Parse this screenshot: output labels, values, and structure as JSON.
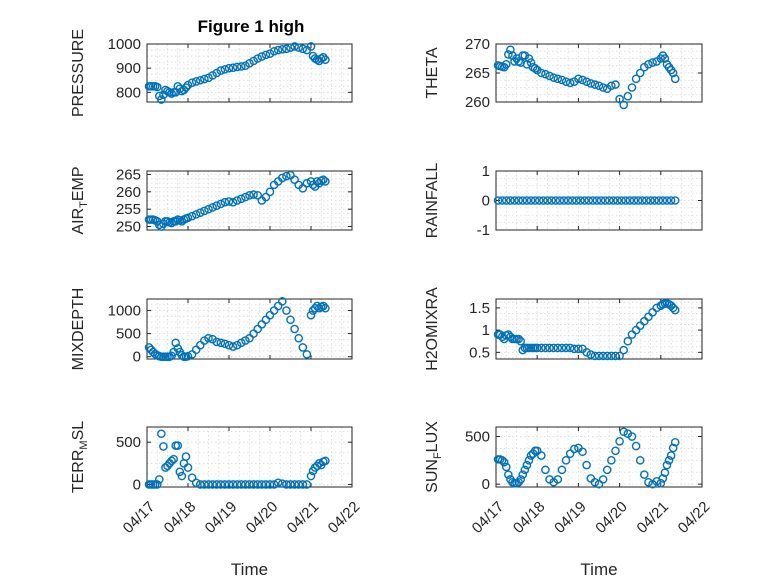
{
  "figure": {
    "title": "Figure 1 high",
    "x_label": "Time",
    "marker_color": "#0072BD"
  },
  "chart_data": [
    {
      "type": "scatter",
      "id": "pressure",
      "ylabel": "PRESSURE",
      "ylabel_main": "PRESSURE",
      "ylabel_sub": "",
      "ylabel_tail": "",
      "title": "Figure 1 high",
      "xlim": [
        0,
        5
      ],
      "ylim": [
        760,
        1000
      ],
      "yticks": [
        800,
        900,
        1000
      ],
      "show_xticks": false,
      "x": [
        0.05,
        0.1,
        0.15,
        0.2,
        0.25,
        0.3,
        0.35,
        0.4,
        0.45,
        0.5,
        0.55,
        0.6,
        0.65,
        0.7,
        0.75,
        0.8,
        0.85,
        0.9,
        0.95,
        1.0,
        1.1,
        1.2,
        1.3,
        1.4,
        1.5,
        1.6,
        1.7,
        1.8,
        1.9,
        2.0,
        2.1,
        2.2,
        2.3,
        2.4,
        2.5,
        2.6,
        2.7,
        2.8,
        2.9,
        3.0,
        3.1,
        3.2,
        3.3,
        3.4,
        3.5,
        3.6,
        3.7,
        3.8,
        3.9,
        4.0,
        4.05,
        4.1,
        4.15,
        4.2,
        4.25,
        4.3,
        4.35
      ],
      "y": [
        825,
        825,
        825,
        825,
        822,
        785,
        770,
        790,
        810,
        805,
        800,
        795,
        800,
        800,
        825,
        815,
        805,
        810,
        820,
        830,
        840,
        845,
        850,
        855,
        860,
        870,
        880,
        890,
        895,
        900,
        902,
        905,
        907,
        910,
        920,
        930,
        940,
        948,
        955,
        960,
        970,
        975,
        978,
        980,
        985,
        990,
        985,
        980,
        975,
        990,
        950,
        940,
        935,
        930,
        940,
        945,
        935
      ]
    },
    {
      "type": "scatter",
      "id": "theta",
      "ylabel": "THETA",
      "ylabel_main": "THETA",
      "ylabel_sub": "",
      "ylabel_tail": "",
      "xlim": [
        0,
        5
      ],
      "ylim": [
        260,
        270
      ],
      "yticks": [
        260,
        265,
        270
      ],
      "show_xticks": false,
      "x": [
        0.05,
        0.1,
        0.15,
        0.2,
        0.25,
        0.3,
        0.35,
        0.4,
        0.45,
        0.5,
        0.55,
        0.6,
        0.65,
        0.7,
        0.75,
        0.8,
        0.85,
        0.9,
        0.95,
        1.0,
        1.1,
        1.2,
        1.3,
        1.4,
        1.5,
        1.6,
        1.7,
        1.8,
        1.9,
        2.0,
        2.1,
        2.2,
        2.3,
        2.4,
        2.5,
        2.6,
        2.7,
        2.8,
        2.9,
        3.0,
        3.1,
        3.2,
        3.3,
        3.4,
        3.5,
        3.6,
        3.7,
        3.8,
        3.9,
        4.0,
        4.05,
        4.1,
        4.15,
        4.2,
        4.25,
        4.3,
        4.35
      ],
      "y": [
        266.3,
        266.2,
        266.1,
        266.0,
        266.5,
        268.2,
        269.0,
        268.0,
        267.0,
        267.5,
        267.0,
        266.8,
        268.0,
        268.0,
        266.5,
        267.5,
        266.8,
        266.0,
        265.8,
        265.5,
        265.0,
        264.8,
        264.5,
        264.2,
        264.0,
        263.8,
        263.5,
        263.3,
        263.5,
        264.0,
        263.8,
        263.5,
        263.2,
        263.0,
        262.8,
        262.5,
        262.3,
        262.8,
        263.0,
        260.5,
        259.5,
        261.0,
        262.5,
        264.0,
        265.0,
        266.0,
        266.5,
        266.8,
        267.0,
        267.5,
        268.0,
        267.5,
        266.5,
        266.0,
        265.5,
        265.0,
        264.0
      ]
    },
    {
      "type": "scatter",
      "id": "air-temp",
      "ylabel": "AIR_TEMP",
      "ylabel_main": "AIR",
      "ylabel_sub": "T",
      "ylabel_tail": "EMP",
      "xlim": [
        0,
        5
      ],
      "ylim": [
        249,
        266
      ],
      "yticks": [
        250,
        255,
        260,
        265
      ],
      "show_xticks": false,
      "x": [
        0.05,
        0.1,
        0.15,
        0.2,
        0.25,
        0.3,
        0.35,
        0.4,
        0.45,
        0.5,
        0.55,
        0.6,
        0.65,
        0.7,
        0.75,
        0.8,
        0.85,
        0.9,
        0.95,
        1.0,
        1.1,
        1.2,
        1.3,
        1.4,
        1.5,
        1.6,
        1.7,
        1.8,
        1.9,
        2.0,
        2.1,
        2.2,
        2.3,
        2.4,
        2.5,
        2.6,
        2.7,
        2.8,
        2.9,
        3.0,
        3.1,
        3.2,
        3.3,
        3.4,
        3.5,
        3.6,
        3.7,
        3.8,
        3.9,
        4.0,
        4.05,
        4.1,
        4.15,
        4.2,
        4.25,
        4.3,
        4.35
      ],
      "y": [
        252.0,
        252.0,
        252.0,
        251.8,
        251.5,
        250.5,
        250.0,
        250.8,
        251.5,
        251.5,
        251.2,
        251.0,
        251.5,
        251.5,
        252.0,
        251.8,
        251.5,
        252.0,
        252.3,
        252.5,
        253.0,
        253.5,
        254.0,
        254.5,
        255.0,
        255.5,
        256.0,
        256.5,
        257.0,
        257.2,
        257.0,
        257.5,
        258.0,
        258.5,
        259.0,
        259.2,
        259.0,
        257.5,
        258.5,
        260.0,
        262.0,
        263.0,
        264.0,
        264.5,
        264.8,
        263.5,
        262.0,
        261.0,
        262.5,
        263.0,
        262.0,
        261.5,
        263.0,
        262.5,
        263.2,
        263.5,
        263.0
      ]
    },
    {
      "type": "scatter",
      "id": "rainfall",
      "ylabel": "RAINFALL",
      "ylabel_main": "RAINFALL",
      "ylabel_sub": "",
      "ylabel_tail": "",
      "xlim": [
        0,
        5
      ],
      "ylim": [
        -1,
        1
      ],
      "yticks": [
        -1,
        0,
        1
      ],
      "show_xticks": false,
      "x": [
        0.05,
        0.15,
        0.25,
        0.35,
        0.45,
        0.55,
        0.65,
        0.75,
        0.85,
        0.95,
        1.05,
        1.15,
        1.25,
        1.35,
        1.45,
        1.55,
        1.65,
        1.75,
        1.85,
        1.95,
        2.05,
        2.15,
        2.25,
        2.35,
        2.45,
        2.55,
        2.65,
        2.75,
        2.85,
        2.95,
        3.05,
        3.15,
        3.25,
        3.35,
        3.45,
        3.55,
        3.65,
        3.75,
        3.85,
        3.95,
        4.05,
        4.15,
        4.25,
        4.35
      ],
      "y": [
        0,
        0,
        0,
        0,
        0,
        0,
        0,
        0,
        0,
        0,
        0,
        0,
        0,
        0,
        0,
        0,
        0,
        0,
        0,
        0,
        0,
        0,
        0,
        0,
        0,
        0,
        0,
        0,
        0,
        0,
        0,
        0,
        0,
        0,
        0,
        0,
        0,
        0,
        0,
        0,
        0,
        0,
        0,
        0
      ]
    },
    {
      "type": "scatter",
      "id": "mixdepth",
      "ylabel": "MIXDEPTH",
      "ylabel_main": "MIXDEPTH",
      "ylabel_sub": "",
      "ylabel_tail": "",
      "xlim": [
        0,
        5
      ],
      "ylim": [
        -50,
        1250
      ],
      "yticks": [
        0,
        500,
        1000
      ],
      "show_xticks": false,
      "x": [
        0.05,
        0.1,
        0.15,
        0.2,
        0.25,
        0.3,
        0.35,
        0.4,
        0.45,
        0.5,
        0.55,
        0.6,
        0.65,
        0.7,
        0.75,
        0.8,
        0.85,
        0.9,
        0.95,
        1.0,
        1.1,
        1.2,
        1.3,
        1.4,
        1.5,
        1.6,
        1.7,
        1.8,
        1.9,
        2.0,
        2.1,
        2.2,
        2.3,
        2.4,
        2.5,
        2.6,
        2.7,
        2.8,
        2.9,
        3.0,
        3.1,
        3.2,
        3.3,
        3.4,
        3.5,
        3.6,
        3.7,
        3.8,
        3.9,
        4.0,
        4.05,
        4.1,
        4.15,
        4.2,
        4.25,
        4.3,
        4.35
      ],
      "y": [
        200,
        150,
        100,
        60,
        30,
        10,
        0,
        0,
        0,
        0,
        0,
        20,
        100,
        300,
        180,
        100,
        30,
        0,
        0,
        10,
        50,
        150,
        250,
        350,
        400,
        380,
        320,
        300,
        280,
        250,
        220,
        250,
        300,
        350,
        400,
        500,
        600,
        700,
        800,
        900,
        1000,
        1100,
        1200,
        1000,
        800,
        600,
        400,
        200,
        50,
        900,
        1000,
        1050,
        1100,
        1050,
        1080,
        1100,
        1050
      ]
    },
    {
      "type": "scatter",
      "id": "h2omixra",
      "ylabel": "H2OMIXRA",
      "ylabel_main": "H2OMIXRA",
      "ylabel_sub": "",
      "ylabel_tail": "",
      "xlim": [
        0,
        5
      ],
      "ylim": [
        0.35,
        1.7
      ],
      "yticks": [
        0.5,
        1,
        1.5
      ],
      "show_xticks": false,
      "x": [
        0.05,
        0.1,
        0.15,
        0.2,
        0.25,
        0.3,
        0.35,
        0.4,
        0.45,
        0.5,
        0.55,
        0.6,
        0.65,
        0.7,
        0.75,
        0.8,
        0.85,
        0.9,
        0.95,
        1.0,
        1.1,
        1.2,
        1.3,
        1.4,
        1.5,
        1.6,
        1.7,
        1.8,
        1.9,
        2.0,
        2.1,
        2.2,
        2.3,
        2.4,
        2.5,
        2.6,
        2.7,
        2.8,
        2.9,
        3.0,
        3.1,
        3.2,
        3.3,
        3.4,
        3.5,
        3.6,
        3.7,
        3.8,
        3.9,
        4.0,
        4.05,
        4.1,
        4.15,
        4.2,
        4.25,
        4.3,
        4.35
      ],
      "y": [
        0.9,
        0.9,
        0.85,
        0.8,
        0.88,
        0.9,
        0.85,
        0.8,
        0.8,
        0.8,
        0.8,
        0.75,
        0.55,
        0.6,
        0.6,
        0.6,
        0.6,
        0.6,
        0.6,
        0.6,
        0.6,
        0.6,
        0.6,
        0.6,
        0.6,
        0.6,
        0.6,
        0.6,
        0.58,
        0.58,
        0.58,
        0.5,
        0.45,
        0.42,
        0.42,
        0.42,
        0.42,
        0.42,
        0.42,
        0.42,
        0.55,
        0.75,
        0.9,
        1.0,
        1.1,
        1.2,
        1.3,
        1.4,
        1.5,
        1.55,
        1.58,
        1.6,
        1.6,
        1.58,
        1.55,
        1.5,
        1.45
      ]
    },
    {
      "type": "scatter",
      "id": "terr-msl",
      "ylabel": "TERR_MSL",
      "ylabel_main": "TERR",
      "ylabel_sub": "M",
      "ylabel_tail": "SL",
      "xlim": [
        0,
        5
      ],
      "ylim": [
        -30,
        680
      ],
      "yticks": [
        0,
        500
      ],
      "show_xticks": true,
      "x": [
        0.05,
        0.1,
        0.15,
        0.2,
        0.25,
        0.3,
        0.35,
        0.4,
        0.45,
        0.5,
        0.55,
        0.6,
        0.65,
        0.7,
        0.75,
        0.8,
        0.85,
        0.9,
        0.95,
        1.0,
        1.1,
        1.2,
        1.3,
        1.4,
        1.5,
        1.6,
        1.7,
        1.8,
        1.9,
        2.0,
        2.1,
        2.2,
        2.3,
        2.4,
        2.5,
        2.6,
        2.7,
        2.8,
        2.9,
        3.0,
        3.1,
        3.2,
        3.3,
        3.4,
        3.5,
        3.6,
        3.7,
        3.8,
        3.9,
        4.0,
        4.05,
        4.1,
        4.15,
        4.2,
        4.25,
        4.3,
        4.35
      ],
      "y": [
        0,
        0,
        0,
        0,
        0,
        60,
        600,
        450,
        200,
        220,
        250,
        280,
        300,
        460,
        460,
        150,
        100,
        250,
        330,
        200,
        80,
        20,
        0,
        0,
        0,
        0,
        0,
        0,
        0,
        0,
        0,
        0,
        0,
        0,
        0,
        0,
        0,
        0,
        0,
        0,
        0,
        20,
        10,
        0,
        0,
        0,
        0,
        0,
        0,
        100,
        160,
        200,
        220,
        250,
        230,
        270,
        280
      ]
    },
    {
      "type": "scatter",
      "id": "sun-flux",
      "ylabel": "SUN_FLUX",
      "ylabel_main": "SUN",
      "ylabel_sub": "F",
      "ylabel_tail": "LUX",
      "xlim": [
        0,
        5
      ],
      "ylim": [
        -30,
        600
      ],
      "yticks": [
        0,
        500
      ],
      "show_xticks": true,
      "x": [
        0.05,
        0.1,
        0.15,
        0.2,
        0.25,
        0.3,
        0.35,
        0.4,
        0.45,
        0.5,
        0.55,
        0.6,
        0.65,
        0.7,
        0.75,
        0.8,
        0.85,
        0.9,
        0.95,
        1.0,
        1.1,
        1.2,
        1.3,
        1.4,
        1.5,
        1.6,
        1.7,
        1.8,
        1.9,
        2.0,
        2.1,
        2.2,
        2.3,
        2.4,
        2.5,
        2.6,
        2.7,
        2.8,
        2.9,
        3.0,
        3.1,
        3.2,
        3.3,
        3.4,
        3.5,
        3.6,
        3.7,
        3.8,
        3.9,
        4.0,
        4.05,
        4.1,
        4.15,
        4.2,
        4.25,
        4.3,
        4.35
      ],
      "y": [
        260,
        260,
        250,
        230,
        180,
        100,
        50,
        20,
        10,
        10,
        20,
        50,
        100,
        150,
        200,
        250,
        300,
        320,
        350,
        350,
        300,
        150,
        50,
        20,
        50,
        150,
        250,
        320,
        370,
        380,
        340,
        200,
        60,
        20,
        0,
        50,
        150,
        250,
        350,
        450,
        550,
        530,
        500,
        400,
        250,
        100,
        20,
        0,
        30,
        10,
        60,
        120,
        200,
        250,
        300,
        380,
        440
      ]
    }
  ],
  "x_tick_labels": [
    "04/17",
    "04/18",
    "04/19",
    "04/20",
    "04/21",
    "04/22"
  ]
}
